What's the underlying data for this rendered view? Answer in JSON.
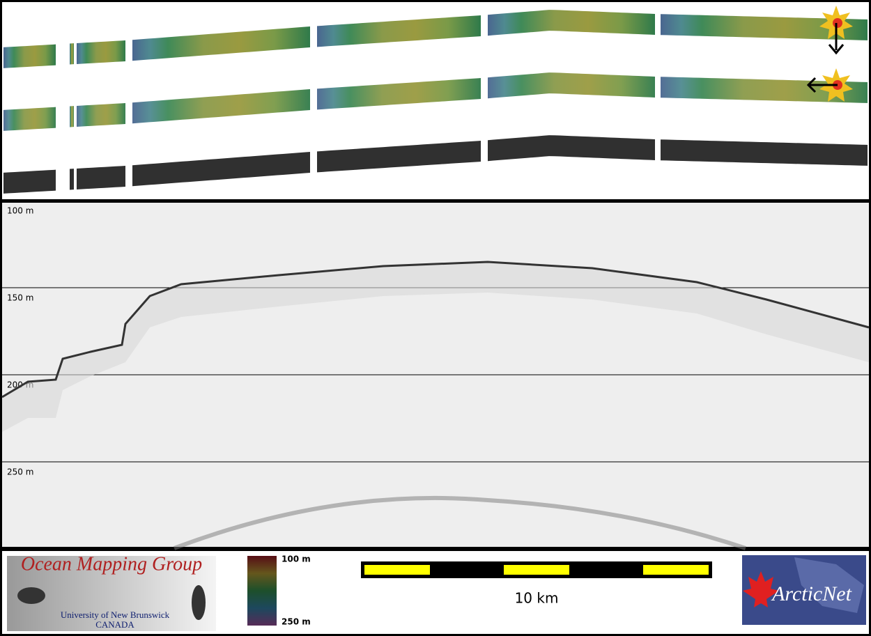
{
  "echogram": {
    "depth_labels": [
      "100 m",
      "150 m",
      "200 m",
      "250 m"
    ]
  },
  "legend": {
    "top_label": "100 m",
    "bottom_label": "250 m"
  },
  "scale_bar": {
    "label": "10 km"
  },
  "logos": {
    "left": {
      "title": "Ocean Mapping Group",
      "subtitle": "University of New Brunswick",
      "country": "CANADA"
    },
    "right": {
      "name": "ArcticNet"
    }
  }
}
